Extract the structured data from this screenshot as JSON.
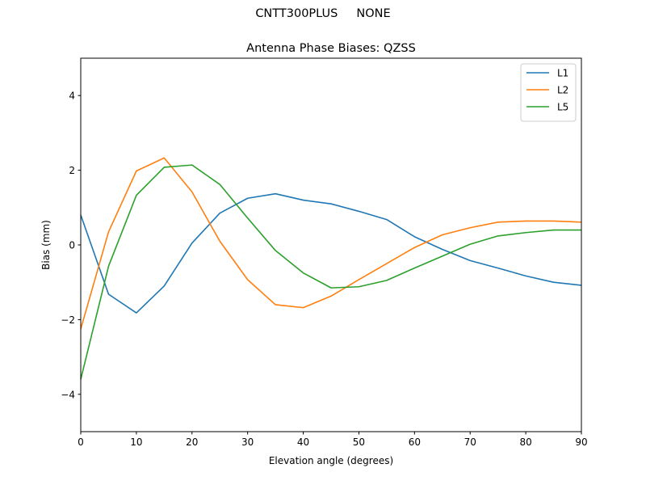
{
  "figure": {
    "suptitle_left": "CNTT300PLUS",
    "suptitle_right": "NONE"
  },
  "chart_data": {
    "type": "line",
    "title": "Antenna Phase Biases: QZSS",
    "xlabel": "Elevation angle (degrees)",
    "ylabel": "Bias (mm)",
    "xlim": [
      0,
      90
    ],
    "ylim": [
      -5,
      5
    ],
    "xticks": [
      0,
      10,
      20,
      30,
      40,
      50,
      60,
      70,
      80,
      90
    ],
    "yticks": [
      -4,
      -2,
      0,
      2,
      4
    ],
    "ytick_labels": [
      "−4",
      "−2",
      "0",
      "2",
      "4"
    ],
    "grid": false,
    "legend_position": "top-right",
    "x": [
      0,
      5,
      10,
      15,
      20,
      25,
      30,
      35,
      40,
      45,
      50,
      55,
      60,
      65,
      70,
      75,
      80,
      85,
      90
    ],
    "series": [
      {
        "name": "L1",
        "color": "#1f77b4",
        "values": [
          0.8,
          -1.32,
          -1.82,
          -1.1,
          0.05,
          0.85,
          1.25,
          1.37,
          1.2,
          1.1,
          0.9,
          0.68,
          0.22,
          -0.12,
          -0.42,
          -0.62,
          -0.83,
          -1.0,
          -1.08
        ]
      },
      {
        "name": "L2",
        "color": "#ff7f0e",
        "values": [
          -2.25,
          0.35,
          1.98,
          2.33,
          1.42,
          0.1,
          -0.93,
          -1.6,
          -1.68,
          -1.37,
          -0.93,
          -0.5,
          -0.07,
          0.27,
          0.46,
          0.61,
          0.64,
          0.64,
          0.61
        ]
      },
      {
        "name": "L5",
        "color": "#2ca02c",
        "values": [
          -3.6,
          -0.57,
          1.33,
          2.08,
          2.14,
          1.62,
          0.72,
          -0.15,
          -0.75,
          -1.15,
          -1.12,
          -0.95,
          -0.62,
          -0.3,
          0.02,
          0.24,
          0.33,
          0.4,
          0.4
        ]
      }
    ]
  }
}
